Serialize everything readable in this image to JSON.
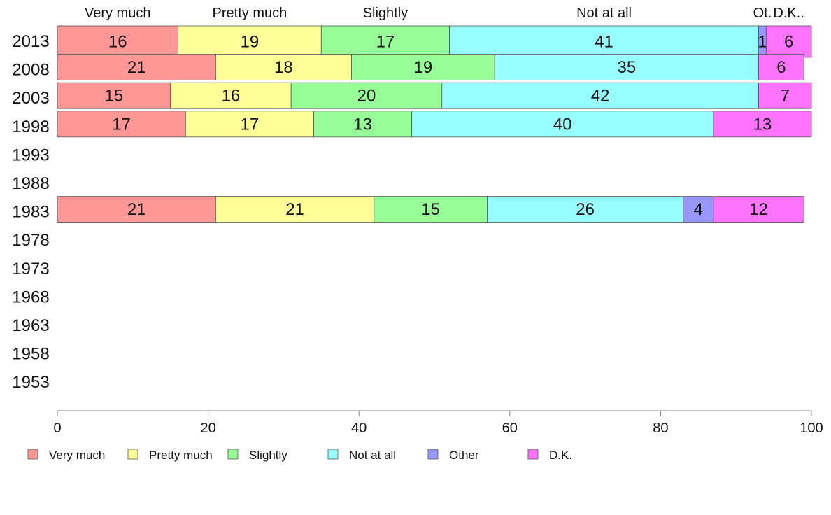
{
  "chart_data": {
    "type": "bar",
    "orientation": "horizontal",
    "stacked": true,
    "categories": [
      "2013",
      "2008",
      "2003",
      "1998",
      "1993",
      "1988",
      "1983",
      "1978",
      "1973",
      "1968",
      "1963",
      "1958",
      "1953"
    ],
    "series": [
      {
        "name": "Very much",
        "color": "#ff9797",
        "values": [
          16,
          21,
          15,
          17,
          null,
          null,
          21,
          null,
          null,
          null,
          null,
          null,
          null
        ]
      },
      {
        "name": "Pretty much",
        "color": "#ffff97",
        "values": [
          19,
          18,
          16,
          17,
          null,
          null,
          21,
          null,
          null,
          null,
          null,
          null,
          null
        ]
      },
      {
        "name": "Slightly",
        "color": "#97ff97",
        "values": [
          17,
          19,
          20,
          13,
          null,
          null,
          15,
          null,
          null,
          null,
          null,
          null,
          null
        ]
      },
      {
        "name": "Not at all",
        "color": "#97ffff",
        "values": [
          41,
          35,
          42,
          40,
          null,
          null,
          26,
          null,
          null,
          null,
          null,
          null,
          null
        ]
      },
      {
        "name": "Other",
        "color": "#9797ff",
        "values": [
          1,
          0,
          0,
          0,
          null,
          null,
          4,
          null,
          null,
          null,
          null,
          null,
          null
        ]
      },
      {
        "name": "D.K.",
        "color": "#ff73ff",
        "values": [
          6,
          6,
          7,
          13,
          null,
          null,
          12,
          null,
          null,
          null,
          null,
          null,
          null
        ]
      }
    ],
    "header_labels": [
      "Very much",
      "Pretty much",
      "Slightly",
      "Not at all",
      "Ot.",
      "D.K.."
    ],
    "xlim": [
      0,
      100
    ],
    "xticks": [
      0,
      20,
      40,
      60,
      80,
      100
    ],
    "title": "",
    "xlabel": "",
    "ylabel": "",
    "grid": false,
    "legend_position": "bottom"
  }
}
